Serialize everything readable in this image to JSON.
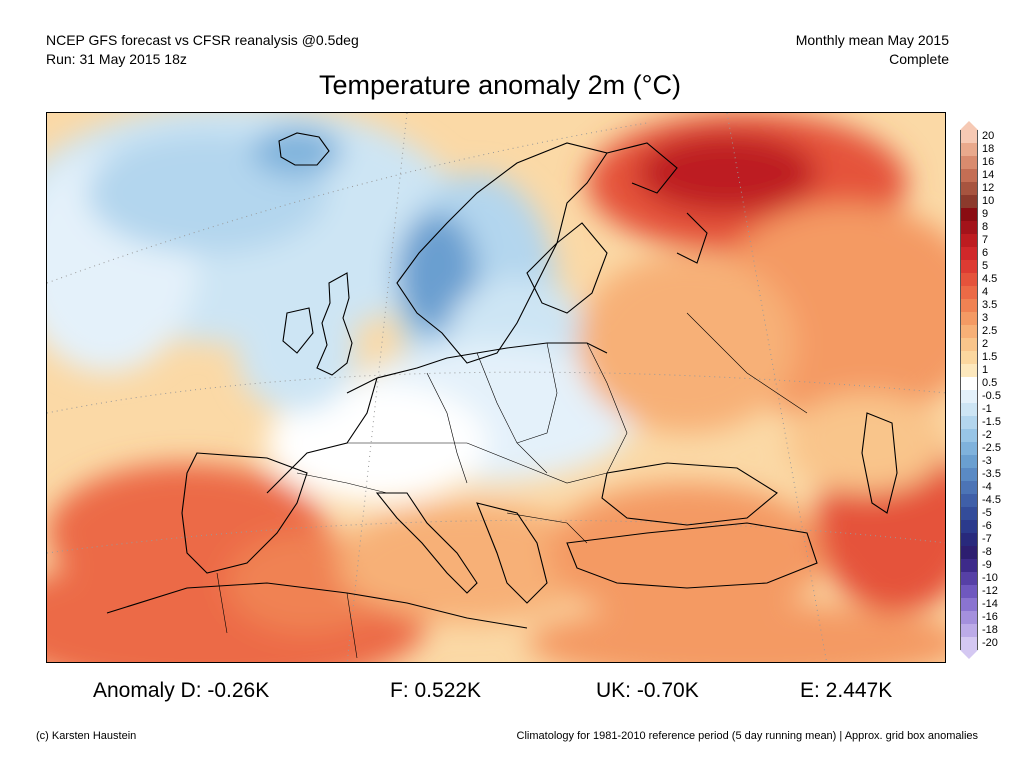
{
  "header": {
    "line1_left": "NCEP GFS forecast vs CFSR reanalysis @0.5deg",
    "line2_left": "Run: 31 May 2015 18z",
    "line1_right": "Monthly mean May 2015",
    "line2_right": "Complete"
  },
  "title": "Temperature anomaly 2m (°C)",
  "legend": {
    "labels": [
      "20",
      "18",
      "16",
      "14",
      "12",
      "10",
      "9",
      "8",
      "7",
      "6",
      "5",
      "4.5",
      "4",
      "3.5",
      "3",
      "2.5",
      "2",
      "1.5",
      "1",
      "0.5",
      "-0.5",
      "-1",
      "-1.5",
      "-2",
      "-2.5",
      "-3",
      "-3.5",
      "-4",
      "-4.5",
      "-5",
      "-6",
      "-7",
      "-8",
      "-9",
      "-10",
      "-12",
      "-14",
      "-16",
      "-18",
      "-20"
    ],
    "colors": [
      "#f6c9b4",
      "#e9a98c",
      "#d98b6e",
      "#c46e54",
      "#a7543f",
      "#8c3a2c",
      "#8a0c12",
      "#a3131a",
      "#bd1c20",
      "#d0282a",
      "#dd3b32",
      "#e5533b",
      "#ec6a46",
      "#f08253",
      "#f49a64",
      "#f7b077",
      "#f9c58b",
      "#fbd79f",
      "#fde8bd",
      "#ffffff",
      "#e4f1fa",
      "#cde5f4",
      "#b3d6ee",
      "#98c5e6",
      "#7fb2dc",
      "#6a9fd0",
      "#5a8ac4",
      "#4c74b6",
      "#3f5fa8",
      "#334c9a",
      "#2b3a8c",
      "#28297c",
      "#2d1e70",
      "#3d2a8a",
      "#5640a6",
      "#6f58bf",
      "#8a74d0",
      "#a490dd",
      "#bcabe8",
      "#d4c8f2"
    ]
  },
  "stats": {
    "anomaly_d": "Anomaly D: -0.26K",
    "f": "F: 0.522K",
    "uk": "UK: -0.70K",
    "e": "E: 2.447K"
  },
  "footer": {
    "copyright": "(c) Karsten Haustein",
    "climatology": "Climatology for 1981-2010 reference period (5 day running mean) | Approx. grid box anomalies"
  }
}
